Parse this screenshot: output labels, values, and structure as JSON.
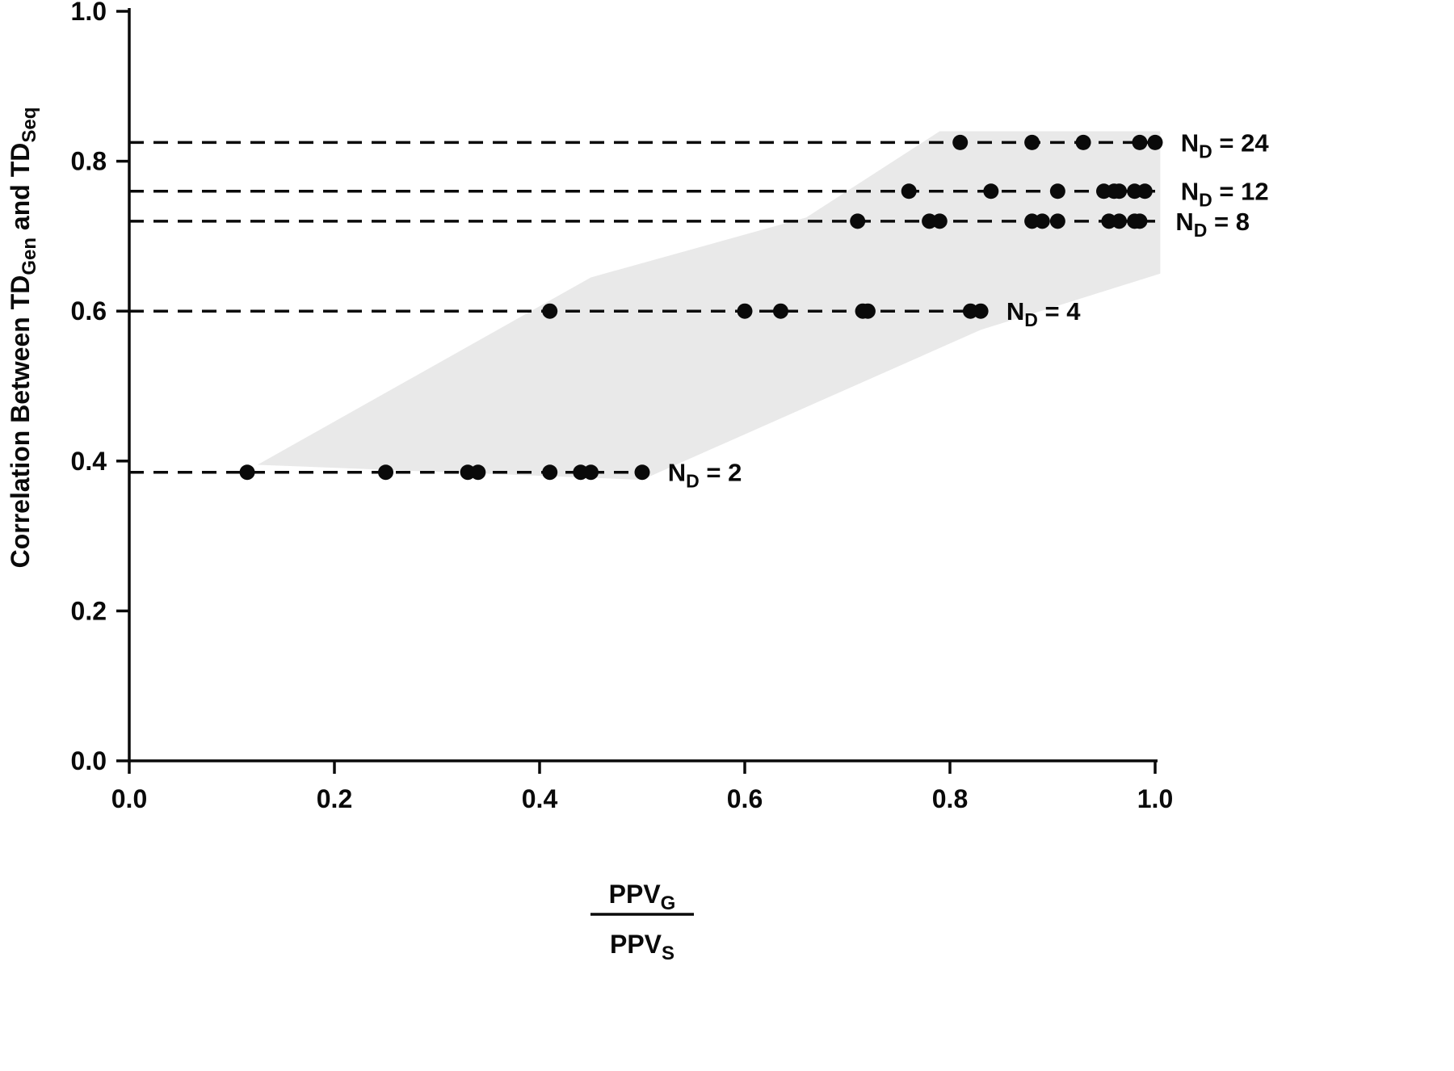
{
  "figure": {
    "background": "#ffffff"
  },
  "chart_data": {
    "type": "scatter",
    "title": "",
    "xlabel": {
      "numerator": [
        {
          "text": "PPV"
        },
        {
          "sub": "G"
        }
      ],
      "denominator": [
        {
          "text": "PPV"
        },
        {
          "sub": "S"
        }
      ]
    },
    "ylabel": [
      {
        "text": "Correlation Between TD"
      },
      {
        "sub": "Gen"
      },
      {
        "text": " and TD"
      },
      {
        "sub": "Seq"
      }
    ],
    "xlim": [
      0.0,
      1.0
    ],
    "ylim": [
      0.0,
      1.0
    ],
    "xticks": [
      0.0,
      0.2,
      0.4,
      0.6,
      0.8,
      1.0
    ],
    "yticks": [
      0.0,
      0.2,
      0.4,
      0.6,
      0.8,
      1.0
    ],
    "grid": false,
    "legend_position": "inline-labels",
    "axis_color": "#0a0a0a",
    "marker": {
      "color": "#0a0a0a",
      "radius": 9.5
    },
    "dash": {
      "color": "#0a0a0a",
      "width": 3.5,
      "pattern": "18 12"
    },
    "band": {
      "color": "#e9e9e9",
      "points": [
        [
          0.125,
          0.395
        ],
        [
          0.45,
          0.645
        ],
        [
          0.66,
          0.725
        ],
        [
          0.79,
          0.84
        ],
        [
          1.005,
          0.84
        ],
        [
          1.005,
          0.65
        ],
        [
          0.83,
          0.575
        ],
        [
          0.5,
          0.375
        ]
      ]
    },
    "series": [
      {
        "name": "N_D = 24",
        "label_parts": [
          {
            "text": "N"
          },
          {
            "sub": "D"
          },
          {
            "text": " = 24"
          }
        ],
        "y": 0.825,
        "x": [
          0.81,
          0.88,
          0.93,
          0.985,
          1.0
        ],
        "line_start": 0.0,
        "line_end": 1.0,
        "label_x": 1.025
      },
      {
        "name": "N_D = 12",
        "label_parts": [
          {
            "text": "N"
          },
          {
            "sub": "D"
          },
          {
            "text": " = 12"
          }
        ],
        "y": 0.76,
        "x": [
          0.76,
          0.84,
          0.905,
          0.95,
          0.96,
          0.965,
          0.98,
          0.99
        ],
        "line_start": 0.0,
        "line_end": 1.0,
        "label_x": 1.025
      },
      {
        "name": "N_D = 8",
        "label_parts": [
          {
            "text": "N"
          },
          {
            "sub": "D"
          },
          {
            "text": " = 8"
          }
        ],
        "y": 0.72,
        "x": [
          0.71,
          0.78,
          0.79,
          0.88,
          0.89,
          0.905,
          0.955,
          0.965,
          0.98,
          0.985
        ],
        "line_start": 0.0,
        "line_end": 1.0,
        "label_x": 1.02
      },
      {
        "name": "N_D = 4",
        "label_parts": [
          {
            "text": "N"
          },
          {
            "sub": "D"
          },
          {
            "text": " = 4"
          }
        ],
        "y": 0.6,
        "x": [
          0.41,
          0.6,
          0.635,
          0.715,
          0.72,
          0.82,
          0.83
        ],
        "line_start": 0.0,
        "line_end": 0.835,
        "label_x": 0.855
      },
      {
        "name": "N_D = 2",
        "label_parts": [
          {
            "text": "N"
          },
          {
            "sub": "D"
          },
          {
            "text": " = 2"
          }
        ],
        "y": 0.385,
        "x": [
          0.115,
          0.25,
          0.33,
          0.34,
          0.41,
          0.44,
          0.45,
          0.5
        ],
        "line_start": 0.0,
        "line_end": 0.5,
        "label_x": 0.525
      }
    ]
  }
}
